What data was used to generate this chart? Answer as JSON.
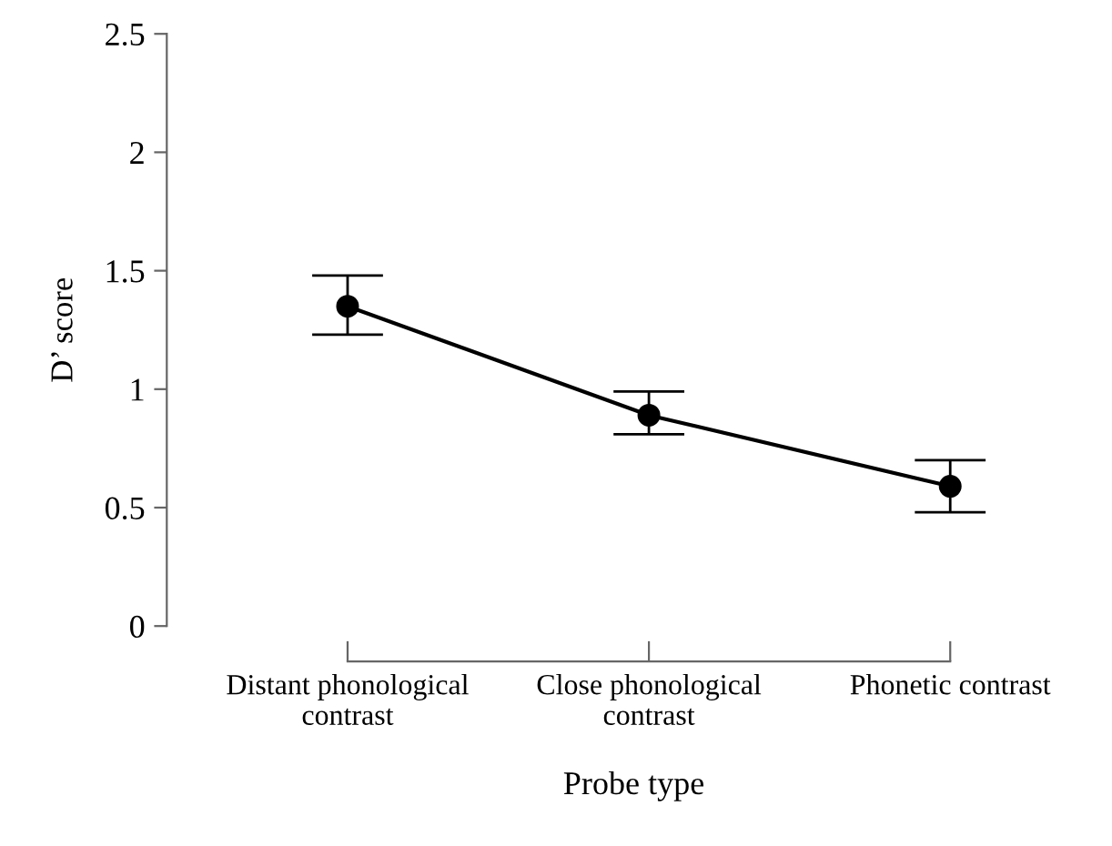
{
  "chart_data": {
    "type": "line",
    "xlabel": "Probe type",
    "ylabel": "D’ score",
    "categories": [
      "Distant phonological\ncontrast",
      "Close phonological\ncontrast",
      "Phonetic contrast"
    ],
    "series": [
      {
        "color": "#000000",
        "values": [
          1.35,
          0.89,
          0.59
        ],
        "errors": [
          [
            1.23,
            1.48
          ],
          [
            0.81,
            0.99
          ],
          [
            0.48,
            0.7
          ]
        ]
      }
    ],
    "ylim": [
      0,
      2.5
    ],
    "yticks": [
      0,
      0.5,
      1,
      1.5,
      2,
      2.5
    ],
    "grid": false,
    "legend": false,
    "marker": "circle",
    "line_style": "solid"
  }
}
